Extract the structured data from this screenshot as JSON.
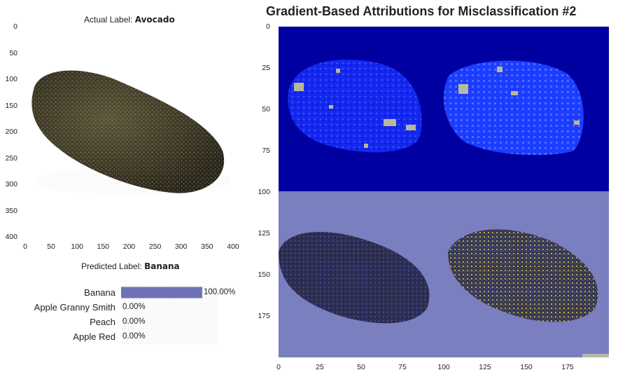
{
  "figure": {
    "title": "Gradient-Based Attributions for Misclassification #2"
  },
  "image_panel": {
    "actual_prefix": "Actual Label:",
    "actual_label": "Avocado",
    "y_ticks": [
      "0",
      "50",
      "100",
      "150",
      "200",
      "250",
      "300",
      "350",
      "400"
    ],
    "x_ticks": [
      "0",
      "50",
      "100",
      "150",
      "200",
      "250",
      "300",
      "350",
      "400"
    ]
  },
  "prediction_panel": {
    "predicted_prefix": "Predicted Label:",
    "predicted_label": "Banana"
  },
  "attribution_panel": {
    "y_ticks": [
      "0",
      "25",
      "50",
      "75",
      "100",
      "125",
      "150",
      "175"
    ],
    "x_ticks": [
      "0",
      "25",
      "50",
      "75",
      "100",
      "125",
      "150",
      "175"
    ]
  },
  "colors": {
    "bar": "#6e73b8",
    "attr_top": "#0000a0",
    "attr_bottom": "#7a7fc0",
    "avocado": "#3f3a28"
  },
  "chart_data": [
    {
      "type": "bar",
      "orientation": "horizontal",
      "title": "Predicted Label: Banana",
      "categories": [
        "Banana",
        "Apple Granny Smith",
        "Peach",
        "Apple Red"
      ],
      "values": [
        100.0,
        0.0,
        0.0,
        0.0
      ],
      "value_labels": [
        "100.00%",
        "0.00%",
        "0.00%",
        "0.00%"
      ],
      "xlim": [
        0,
        100
      ]
    }
  ]
}
